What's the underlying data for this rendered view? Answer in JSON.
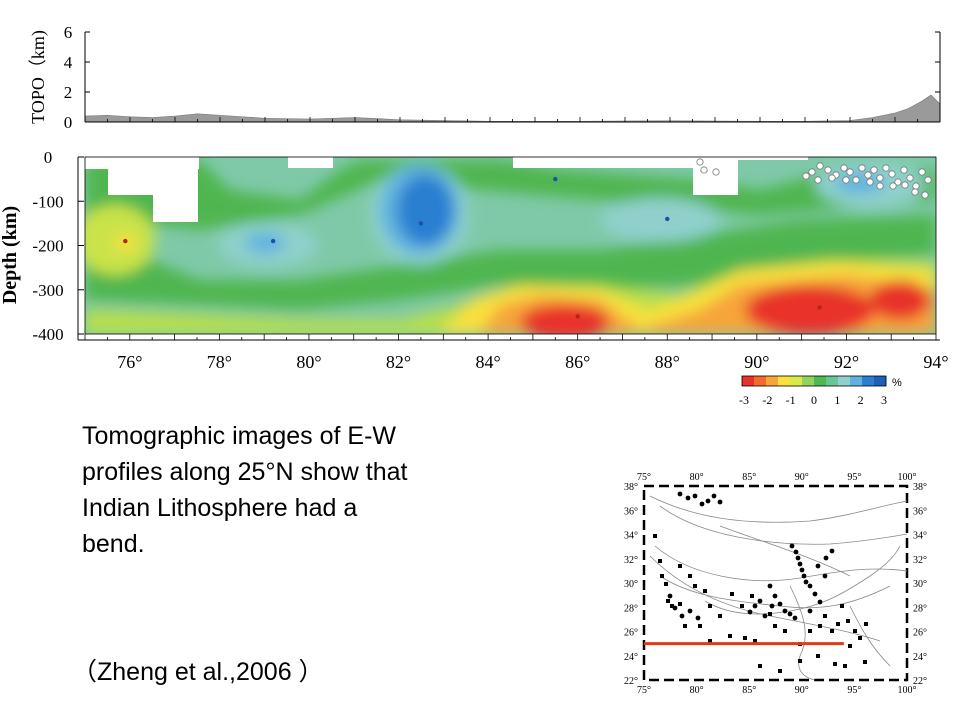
{
  "chart_data": [
    {
      "type": "area",
      "ylabel": "TOPO（km)",
      "yticks": [
        0,
        2,
        4,
        6
      ],
      "ylim": [
        0,
        6
      ],
      "xlim": [
        75,
        94
      ],
      "x": [
        75.0,
        75.5,
        76.0,
        76.5,
        77.0,
        77.5,
        78.0,
        78.5,
        79.0,
        80.0,
        81.0,
        82.0,
        84.0,
        86.0,
        88.0,
        90.0,
        91.0,
        92.0,
        92.5,
        93.0,
        93.3,
        93.6,
        93.8,
        94.0
      ],
      "y": [
        0.4,
        0.45,
        0.35,
        0.3,
        0.4,
        0.55,
        0.45,
        0.35,
        0.25,
        0.2,
        0.3,
        0.15,
        0.05,
        0.05,
        0.08,
        0.05,
        0.05,
        0.1,
        0.3,
        0.6,
        0.9,
        1.4,
        1.8,
        1.2
      ],
      "color": "#9a9a9a"
    },
    {
      "type": "heatmap",
      "ylabel": "Depth (km)",
      "yticks": [
        0,
        -100,
        -200,
        -300,
        -400
      ],
      "ylim": [
        -400,
        0
      ],
      "xticks": [
        "76°",
        "78°",
        "80°",
        "82°",
        "84°",
        "86°",
        "88°",
        "90°",
        "92°",
        "94°"
      ],
      "xtick_values": [
        76,
        78,
        80,
        82,
        84,
        86,
        88,
        90,
        92,
        94
      ],
      "xlim": [
        75,
        94
      ],
      "colorbar": {
        "unit": "%",
        "tick_labels": [
          "-3",
          "-2",
          "-1",
          "0",
          "1",
          "2",
          "3"
        ],
        "colors": [
          "#e8312a",
          "#f26a2c",
          "#f6a53a",
          "#f8e03d",
          "#d8e94a",
          "#8fd55a",
          "#4fb84f",
          "#6ac49a",
          "#8fd0cc",
          "#5fb2e0",
          "#2a7fd0",
          "#1e5fb8"
        ]
      },
      "anomalies": [
        {
          "x": 82.5,
          "y": -150,
          "value": 2.8
        },
        {
          "x": 79.2,
          "y": -190,
          "value": 1.5
        },
        {
          "x": 88.0,
          "y": -140,
          "value": 1.3
        },
        {
          "x": 75.9,
          "y": -190,
          "value": -1.2
        },
        {
          "x": 86.0,
          "y": -360,
          "value": -3.0
        },
        {
          "x": 91.4,
          "y": -340,
          "value": -3.0
        },
        {
          "x": 85.5,
          "y": -50,
          "value": 0.5
        }
      ]
    },
    {
      "type": "scatter",
      "xticks": [
        "75°",
        "80°",
        "85°",
        "90°",
        "95°",
        "100°"
      ],
      "yticks": [
        "38°",
        "36°",
        "34°",
        "32°",
        "30°",
        "28°",
        "26°",
        "24°",
        "22°"
      ],
      "xlim": [
        75,
        100
      ],
      "ylim": [
        22,
        38
      ],
      "profile_line": {
        "lat": 25,
        "lon_start": 75,
        "lon_end": 94,
        "color": "#e23a12"
      }
    }
  ],
  "caption": {
    "line1": "Tomographic images of E-W",
    "line2": "profiles  along 25°N show that",
    "line3": "Indian Lithosphere had a",
    "line4": "bend."
  },
  "citation": "（Zheng et al.,2006 ）"
}
